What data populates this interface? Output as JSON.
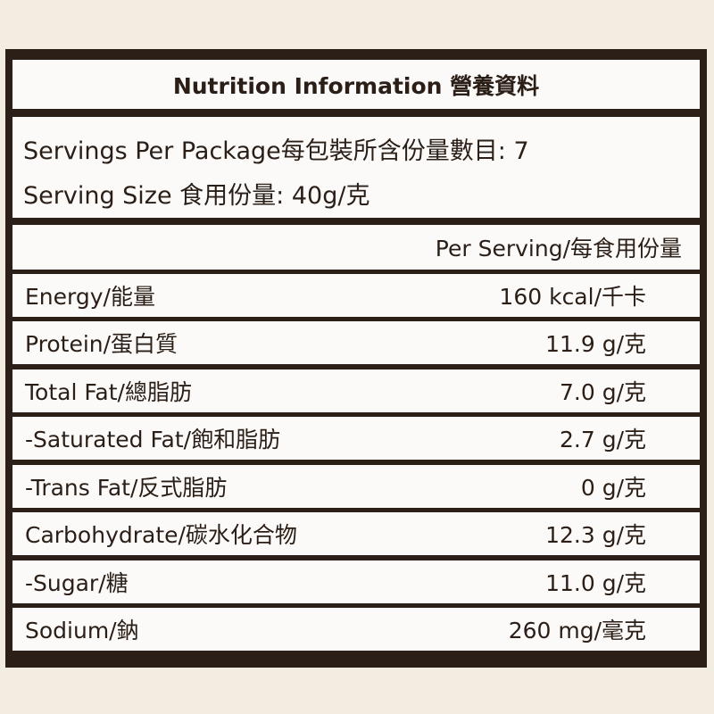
{
  "title": "Nutrition Information 營養資料",
  "servings_per_package": "Servings Per Package每包裝所含份量數目: 7",
  "serving_size": "Serving Size 食用份量: 40g/克",
  "column_header": "Per Serving/每食用份量",
  "rows": [
    {
      "label": "Energy/能量",
      "value": "160 kcal/千卡"
    },
    {
      "label": "Protein/蛋白質",
      "value": "11.9 g/克"
    },
    {
      "label": "Total Fat/總脂肪",
      "value": "7.0 g/克"
    },
    {
      "label": "-Saturated Fat/飽和脂肪",
      "value": "2.7 g/克"
    },
    {
      "label": "-Trans Fat/反式脂肪",
      "value": "0 g/克"
    },
    {
      "label": "Carbohydrate/碳水化合物",
      "value": "12.3 g/克"
    },
    {
      "label": "-Sugar/糖",
      "value": "11.0 g/克"
    },
    {
      "label": "Sodium/鈉",
      "value": "260 mg/毫克"
    }
  ]
}
